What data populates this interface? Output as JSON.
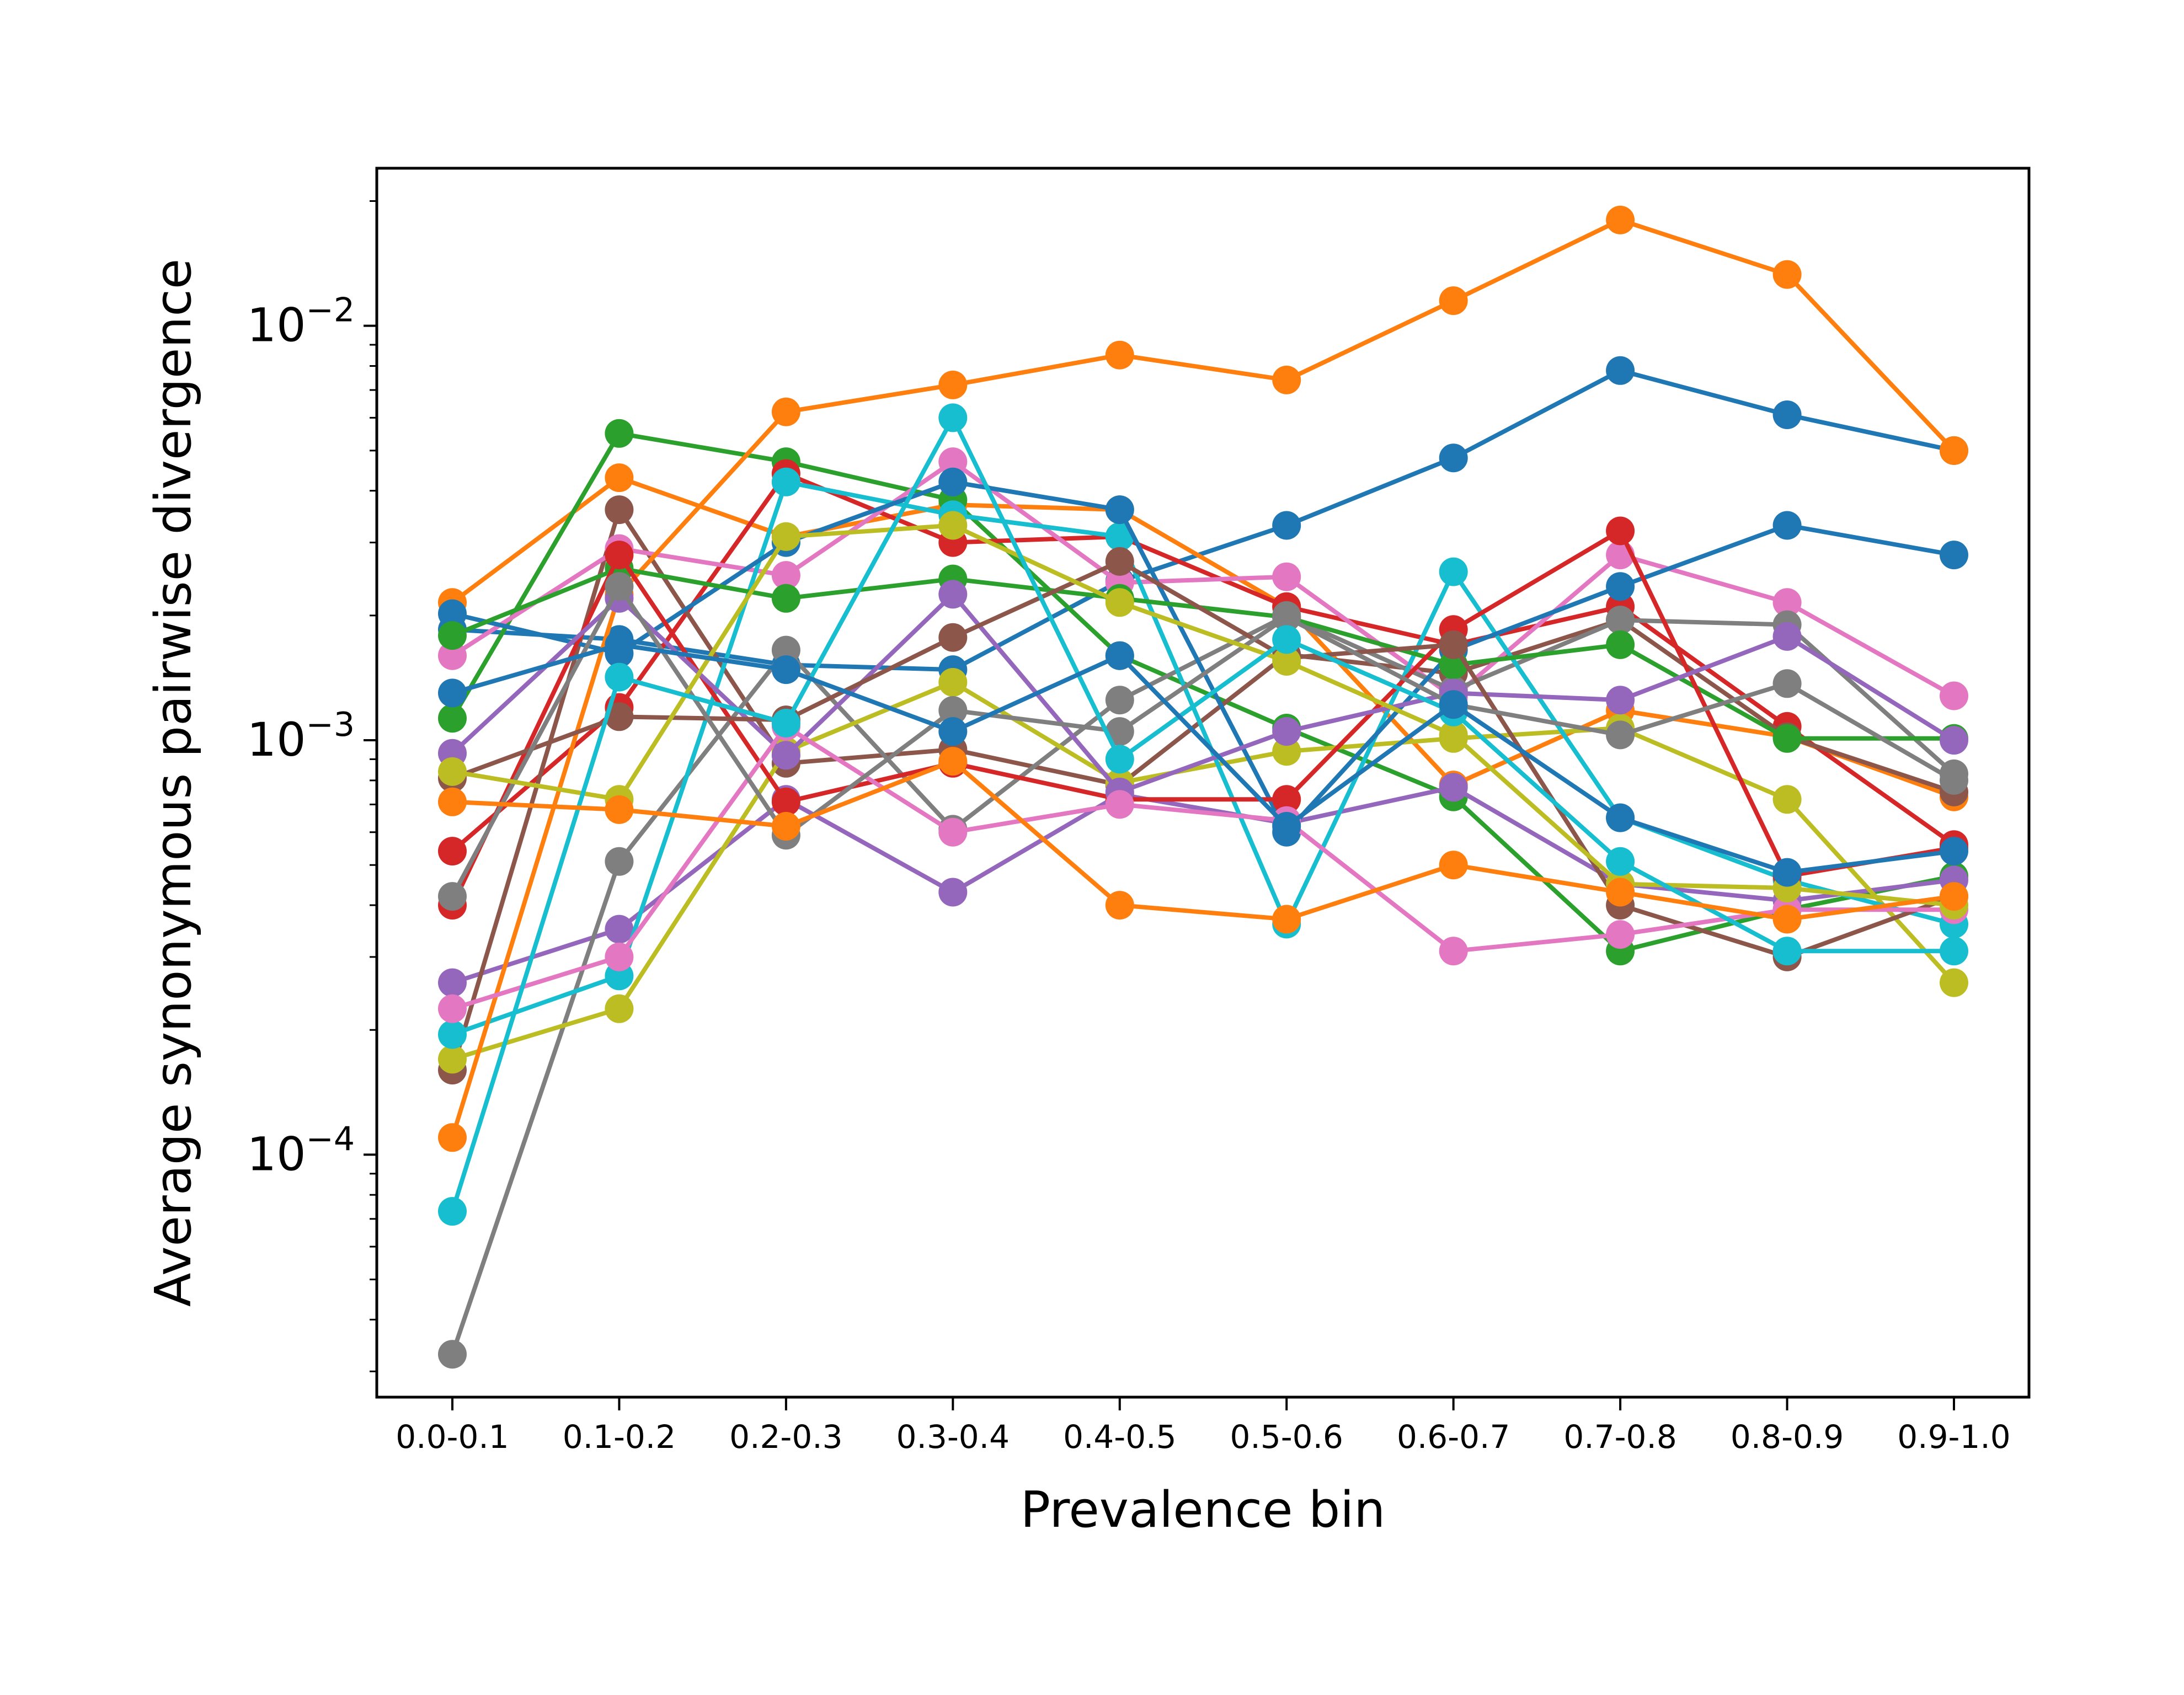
{
  "chart_data": {
    "type": "line",
    "title": "",
    "xlabel": "Prevalence bin",
    "ylabel": "Average synonymous pairwise divergence",
    "yscale": "log",
    "ylim": [
      2.6e-05,
      0.024
    ],
    "yticks": [
      {
        "value": 0.0001,
        "base": "10",
        "exp": "−4"
      },
      {
        "value": 0.001,
        "base": "10",
        "exp": "−3"
      },
      {
        "value": 0.01,
        "base": "10",
        "exp": "−2"
      }
    ],
    "categories": [
      "0.0-0.1",
      "0.1-0.2",
      "0.2-0.3",
      "0.3-0.4",
      "0.4-0.5",
      "0.5-0.6",
      "0.6-0.7",
      "0.7-0.8",
      "0.8-0.9",
      "0.9-1.0"
    ],
    "grid": false,
    "legend": "none",
    "series": [
      {
        "color": "#1f77b4",
        "values": [
          0.00185,
          0.00175,
          0.00152,
          0.00148,
          0.00242,
          0.0033,
          0.0048,
          0.0078,
          0.0061,
          0.005
        ]
      },
      {
        "color": "#ff7f0e",
        "values": [
          0.00215,
          0.0043,
          0.0031,
          0.0037,
          0.0036,
          0.0021,
          0.00078,
          0.00118,
          0.00102,
          0.00073
        ]
      },
      {
        "color": "#2ca02c",
        "values": [
          0.00113,
          0.0055,
          0.0047,
          0.0038,
          0.0016,
          0.00107,
          0.00073,
          0.00031,
          0.00039,
          0.00047
        ]
      },
      {
        "color": "#d62728",
        "values": [
          0.00054,
          0.0012,
          0.0044,
          0.003,
          0.0031,
          0.0021,
          0.0017,
          0.0021,
          0.00108,
          0.00056
        ]
      },
      {
        "color": "#9467bd",
        "values": [
          0.00026,
          0.00035,
          0.00072,
          0.00043,
          0.00074,
          0.00063,
          0.00077,
          0.00045,
          0.00041,
          0.00046
        ]
      },
      {
        "color": "#8c564b",
        "values": [
          0.00016,
          0.0036,
          0.00088,
          0.00095,
          0.00078,
          0.00161,
          0.00145,
          0.00195,
          0.00102,
          0.00075
        ]
      },
      {
        "color": "#e377c2",
        "values": [
          0.0016,
          0.0029,
          0.0025,
          0.0047,
          0.0024,
          0.00248,
          0.00127,
          0.0028,
          0.00215,
          0.00128
        ]
      },
      {
        "color": "#7f7f7f",
        "values": [
          3.3e-05,
          0.00051,
          0.00165,
          0.00061,
          0.00125,
          0.002,
          0.00132,
          0.00195,
          0.0019,
          0.00083
        ]
      },
      {
        "color": "#bcbd22",
        "values": [
          0.00017,
          0.000225,
          0.00094,
          0.00138,
          0.00079,
          0.00094,
          0.00101,
          0.00107,
          0.00072,
          0.00026
        ]
      },
      {
        "color": "#17becf",
        "values": [
          0.000195,
          0.00027,
          0.0042,
          0.0035,
          0.0031,
          0.00036,
          0.00255,
          0.00065,
          0.00046,
          0.00036
        ]
      },
      {
        "color": "#1f77b4",
        "values": [
          0.00202,
          0.00162,
          0.003,
          0.0042,
          0.0036,
          0.0006,
          0.00165,
          0.00235,
          0.0033,
          0.0028
        ]
      },
      {
        "color": "#ff7f0e",
        "values": [
          0.00011,
          0.00225,
          0.0062,
          0.0072,
          0.0085,
          0.0074,
          0.0115,
          0.018,
          0.0133,
          0.005
        ]
      },
      {
        "color": "#2ca02c",
        "values": [
          0.00179,
          0.0026,
          0.0022,
          0.00245,
          0.0022,
          0.00198,
          0.00152,
          0.0017,
          0.00101,
          0.00101
        ]
      },
      {
        "color": "#d62728",
        "values": [
          0.0004,
          0.0028,
          0.00071,
          0.00088,
          0.00072,
          0.00072,
          0.00185,
          0.0032,
          0.00047,
          0.00055
        ]
      },
      {
        "color": "#9467bd",
        "values": [
          0.00093,
          0.0022,
          0.00092,
          0.00225,
          0.00075,
          0.00105,
          0.0013,
          0.00125,
          0.00178,
          0.001
        ]
      },
      {
        "color": "#8c564b",
        "values": [
          0.00081,
          0.00114,
          0.00112,
          0.00177,
          0.0027,
          0.00158,
          0.0017,
          0.0004,
          0.0003,
          0.00042
        ]
      },
      {
        "color": "#e377c2",
        "values": [
          0.000225,
          0.0003,
          0.00108,
          0.0006,
          0.0007,
          0.00064,
          0.00031,
          0.00034,
          0.00039,
          0.00039
        ]
      },
      {
        "color": "#7f7f7f",
        "values": [
          0.00042,
          0.00235,
          0.00059,
          0.00118,
          0.00105,
          0.00198,
          0.00122,
          0.00103,
          0.00137,
          0.0008
        ]
      },
      {
        "color": "#bcbd22",
        "values": [
          0.00084,
          0.00072,
          0.0031,
          0.0033,
          0.00215,
          0.00155,
          0.00103,
          0.00045,
          0.00044,
          0.0004
        ]
      },
      {
        "color": "#17becf",
        "values": [
          7.3e-05,
          0.00142,
          0.0011,
          0.006,
          0.0009,
          0.00175,
          0.00117,
          0.00051,
          0.00031,
          0.00031
        ]
      },
      {
        "color": "#ff7f0e",
        "values": [
          0.00071,
          0.00068,
          0.00062,
          0.00089,
          0.0004,
          0.00037,
          0.0005,
          0.00043,
          0.00037,
          0.00042
        ]
      },
      {
        "color": "#1f77b4",
        "values": [
          0.0013,
          0.0017,
          0.00148,
          0.00105,
          0.0016,
          0.00062,
          0.00122,
          0.00065,
          0.00048,
          0.00054
        ]
      }
    ]
  }
}
